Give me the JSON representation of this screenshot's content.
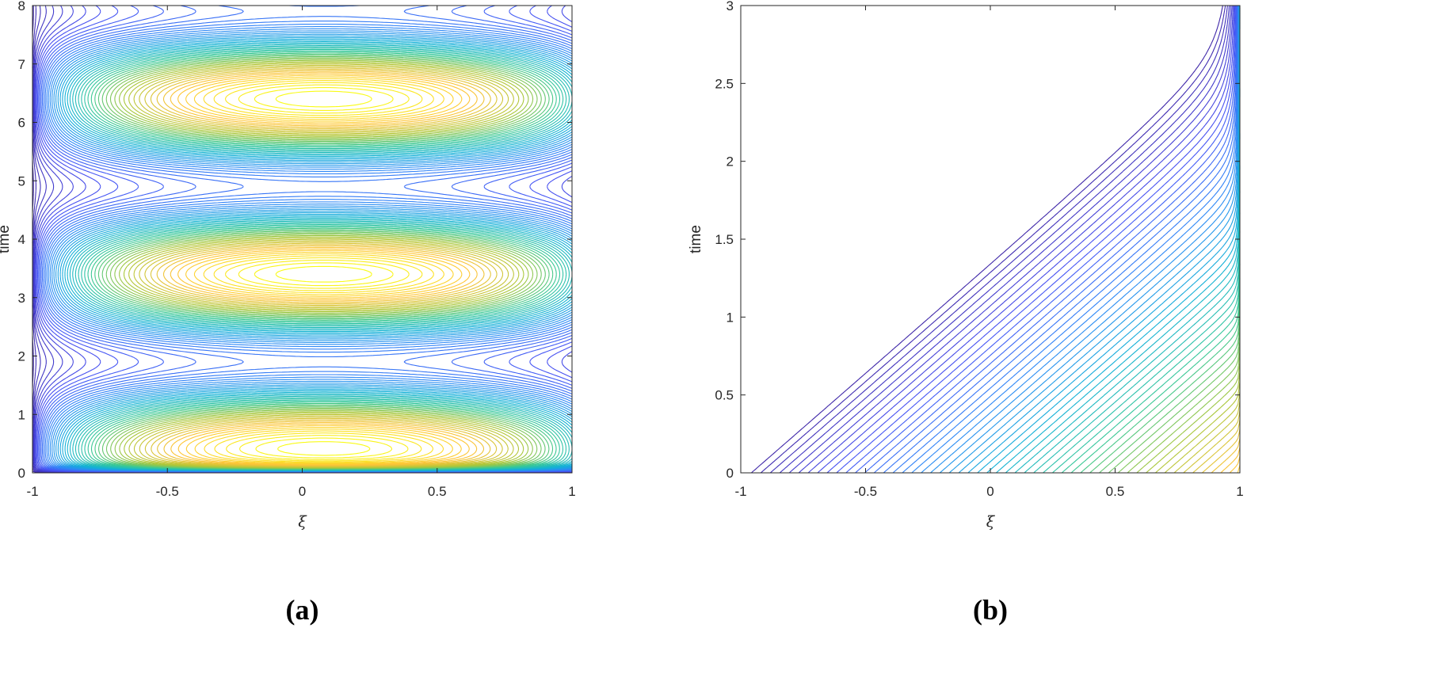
{
  "chart_data": [
    {
      "type": "contour",
      "caption": "(a)",
      "xlabel": "ξ",
      "ylabel": "time",
      "xlim": [
        -1,
        1
      ],
      "ylim": [
        0,
        8
      ],
      "xticks": [
        "-1",
        "-0.5",
        "0",
        "0.5",
        "1"
      ],
      "yticks": [
        "0",
        "1",
        "2",
        "3",
        "4",
        "5",
        "6",
        "7",
        "8"
      ],
      "colormap": "parula",
      "peaks_time": [
        0.4,
        3.3,
        6.4
      ],
      "saddles_time": [
        1.75,
        4.85
      ],
      "grid": false
    },
    {
      "type": "contour",
      "caption": "(b)",
      "xlabel": "ξ",
      "ylabel": "time",
      "xlim": [
        -1,
        1
      ],
      "ylim": [
        0,
        3
      ],
      "xticks": [
        "-1",
        "-0.5",
        "0",
        "0.5",
        "1"
      ],
      "yticks": [
        "0",
        "0.5",
        "1",
        "1.5",
        "2",
        "2.5",
        "3"
      ],
      "colormap": "parula",
      "grid": false
    }
  ]
}
